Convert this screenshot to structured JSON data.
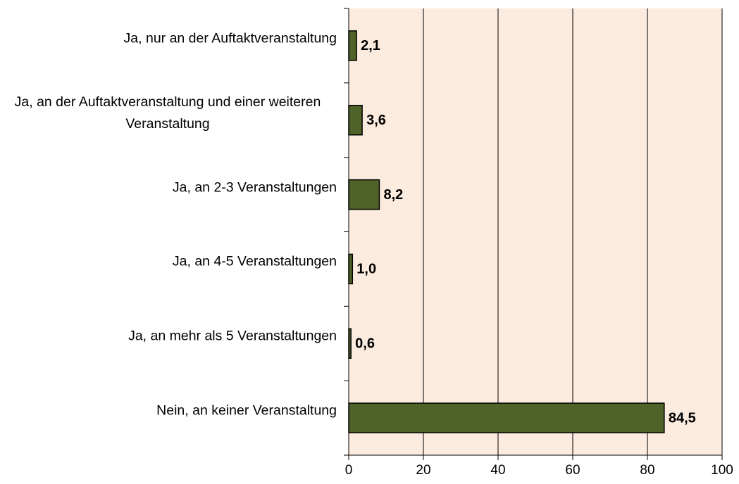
{
  "chart_data": {
    "type": "bar",
    "orientation": "horizontal",
    "categories": [
      "Ja, nur an der Auftaktveranstaltung",
      "Ja, an der Auftaktveranstaltung und einer weiteren Veranstaltung",
      "Ja, an 2-3 Veranstaltungen",
      "Ja, an  4-5 Veranstaltungen",
      "Ja, an mehr als 5 Veranstaltungen",
      "Nein, an keiner Veranstaltung"
    ],
    "values": [
      2.1,
      3.6,
      8.2,
      1.0,
      0.6,
      84.5
    ],
    "value_labels": [
      "2,1",
      "3,6",
      "8,2",
      "1,0",
      "0,6",
      "84,5"
    ],
    "color": "#4f6228",
    "xlim": [
      0,
      100
    ],
    "xticks": [
      0,
      20,
      40,
      60,
      80,
      100
    ],
    "grid": true
  }
}
